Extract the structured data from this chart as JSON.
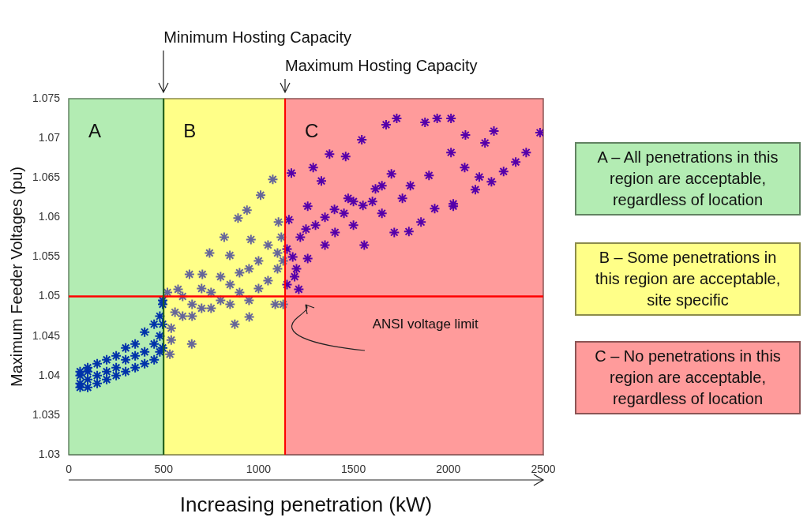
{
  "chart_data": {
    "type": "scatter",
    "xlabel": "Increasing penetration (kW)",
    "ylabel": "Maximum Feeder Voltages (pu)",
    "xlim": [
      0,
      2500
    ],
    "xticks": [
      0,
      500,
      1000,
      1500,
      2000,
      2500
    ],
    "ylim": [
      1.03,
      1.075
    ],
    "yticks": [
      1.03,
      1.035,
      1.04,
      1.045,
      1.05,
      1.055,
      1.06,
      1.065,
      1.07,
      1.075
    ],
    "grid": false,
    "legend": false,
    "marker": "cross",
    "bands": [
      {
        "axis": "x",
        "from": 0,
        "to": 500,
        "label": "A",
        "color": "#b3ecb3"
      },
      {
        "axis": "x",
        "from": 500,
        "to": 1140,
        "label": "B",
        "color": "#ffff88"
      },
      {
        "axis": "x",
        "from": 1140,
        "to": 2500,
        "label": "C",
        "color": "#ff9b9b"
      }
    ],
    "ref_lines": [
      {
        "axis": "y",
        "value": 1.05,
        "label": "ANSI voltage limit",
        "color": "#ff0000"
      },
      {
        "axis": "x",
        "value": 500,
        "label": "Minimum Hosting Capacity",
        "color": "#1a5e1a"
      },
      {
        "axis": "x",
        "value": 1140,
        "label": "Maximum Hosting Capacity",
        "color": "#ff0000"
      }
    ],
    "annotations": [
      "A – All penetrations in this region are acceptable, regardless of location",
      "B – Some penetrations in this region are acceptable, site specific",
      "C – No penetrations in this region are acceptable, regardless of location"
    ],
    "series": [
      {
        "color": "#0033aa",
        "x": [
          60,
          60,
          60,
          60,
          100,
          100,
          100,
          100,
          150,
          150,
          150,
          200,
          200,
          200,
          250,
          250,
          250,
          300,
          300,
          300,
          350,
          350,
          350,
          400,
          400,
          400,
          450,
          450,
          450,
          480,
          480,
          480,
          495,
          495,
          495,
          495
        ],
        "values": [
          1.0385,
          1.039,
          1.04,
          1.0405,
          1.0385,
          1.0395,
          1.0405,
          1.041,
          1.039,
          1.04,
          1.0415,
          1.0395,
          1.0405,
          1.042,
          1.04,
          1.041,
          1.0425,
          1.0405,
          1.042,
          1.0435,
          1.041,
          1.0425,
          1.044,
          1.0415,
          1.043,
          1.0455,
          1.042,
          1.044,
          1.0465,
          1.043,
          1.045,
          1.0475,
          1.0435,
          1.0465,
          1.049,
          1.0495
        ]
      },
      {
        "color": "#666699",
        "x": [
          520,
          533,
          540,
          576,
          600,
          636,
          648,
          650,
          704,
          700,
          742,
          750,
          800,
          819,
          849,
          850,
          875,
          892,
          900,
          939,
          951,
          950,
          960,
          1000,
          1011,
          1050,
          1075,
          1088,
          1100,
          1105,
          1120,
          1130,
          540,
          560,
          600,
          650,
          700,
          750,
          800,
          850,
          900,
          950,
          1000,
          1050,
          1100,
          1130
        ],
        "values": [
          1.0505,
          1.0427,
          1.046,
          1.0509,
          1.0475,
          1.0528,
          1.044,
          1.049,
          1.0528,
          1.0485,
          1.0555,
          1.0505,
          1.0495,
          1.0575,
          1.0552,
          1.0515,
          1.0465,
          1.0599,
          1.053,
          1.0609,
          1.0474,
          1.0495,
          1.0572,
          1.0545,
          1.0628,
          1.052,
          1.0648,
          1.049,
          1.0555,
          1.0594,
          1.0575,
          1.049,
          1.0445,
          1.048,
          1.05,
          1.0475,
          1.051,
          1.0485,
          1.0525,
          1.049,
          1.0505,
          1.0535,
          1.051,
          1.0565,
          1.0535,
          1.0545
        ]
      },
      {
        "color": "#5500aa",
        "x": [
          1212,
          1557,
          1792,
          1715,
          2026,
          2227,
          2291,
          2355,
          2410,
          2483,
          2240,
          1728,
          1941,
          2014,
          1877,
          1672,
          2090,
          2193,
          1544,
          1374,
          1173,
          1459,
          2014,
          2086,
          2163,
          2142,
          2026,
          1928,
          1856,
          1259,
          1472,
          1403,
          1259,
          1190,
          1160,
          1758,
          1616,
          1898,
          1331,
          1288,
          1150,
          1180,
          1220,
          1250,
          1300,
          1350,
          1400,
          1450,
          1500,
          1550,
          1600,
          1650,
          1700,
          1800,
          1150,
          1200,
          1350,
          1500,
          1650
        ],
        "values": [
          1.0509,
          1.0565,
          1.0582,
          1.0581,
          1.0614,
          1.0645,
          1.0658,
          1.067,
          1.0682,
          1.0707,
          1.0709,
          1.0725,
          1.0725,
          1.0725,
          1.072,
          1.0717,
          1.0704,
          1.0694,
          1.0698,
          1.068,
          1.0656,
          1.0677,
          1.0682,
          1.0663,
          1.0651,
          1.0635,
          1.0617,
          1.0611,
          1.0594,
          1.0614,
          1.0624,
          1.0581,
          1.0548,
          1.0525,
          1.0597,
          1.0624,
          1.0636,
          1.0653,
          1.0646,
          1.0663,
          1.0515,
          1.055,
          1.0575,
          1.0585,
          1.059,
          1.06,
          1.061,
          1.0605,
          1.062,
          1.0615,
          1.062,
          1.064,
          1.0655,
          1.064,
          1.056,
          1.0535,
          1.0565,
          1.059,
          1.0605
        ]
      }
    ]
  }
}
